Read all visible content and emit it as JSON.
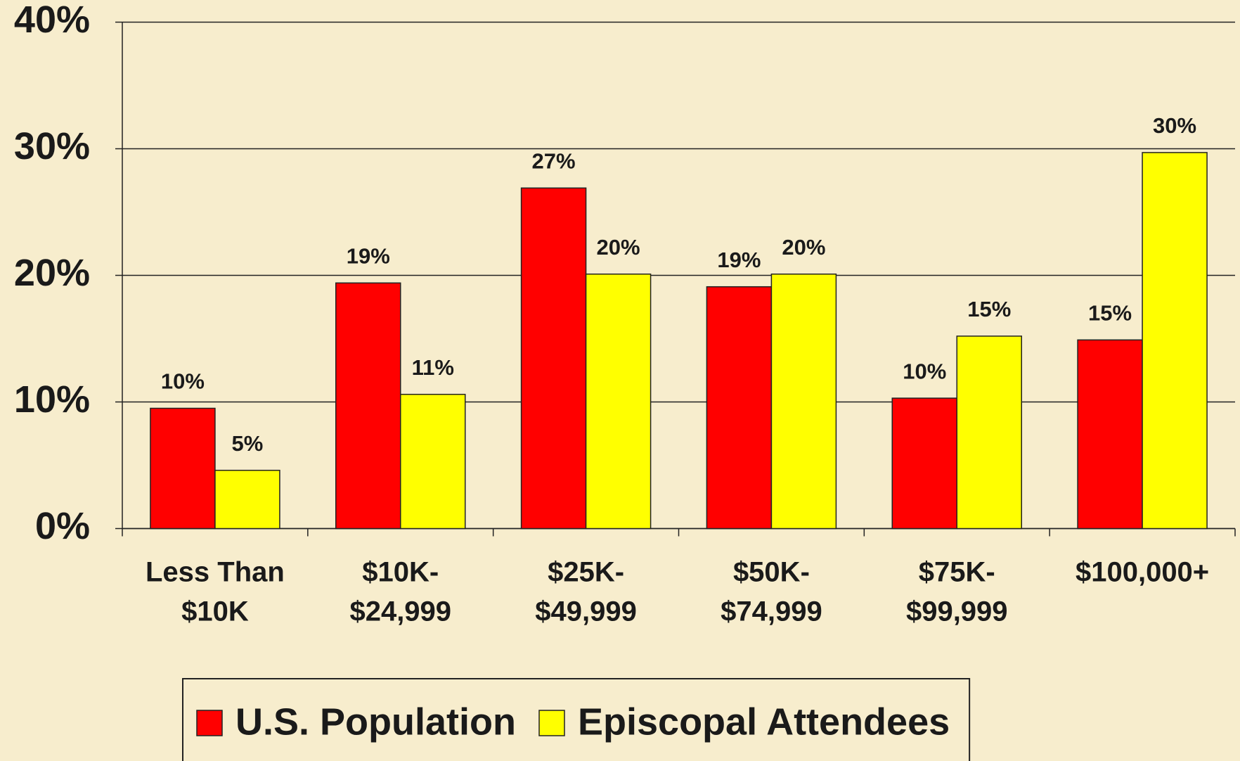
{
  "chart_data": {
    "type": "bar",
    "categories": [
      [
        "Less Than",
        "$10K"
      ],
      [
        "$10K-",
        "$24,999"
      ],
      [
        "$25K-",
        "$49,999"
      ],
      [
        "$50K-",
        "$74,999"
      ],
      [
        "$75K-",
        "$99,999"
      ],
      [
        "$100,000+"
      ]
    ],
    "series": [
      {
        "name": "U.S. Population",
        "color": "#ff0000",
        "values": [
          9.5,
          19.4,
          26.9,
          19.1,
          10.3,
          14.9
        ],
        "value_labels": [
          "10%",
          "19%",
          "27%",
          "19%",
          "10%",
          "15%"
        ]
      },
      {
        "name": "Episcopal Attendees",
        "color": "#ffff00",
        "values": [
          4.6,
          10.6,
          20.1,
          20.1,
          15.2,
          29.7
        ],
        "value_labels": [
          "5%",
          "11%",
          "20%",
          "20%",
          "15%",
          "30%"
        ]
      }
    ],
    "ylim": [
      0,
      40
    ],
    "yticks": [
      {
        "value": 0,
        "label": "0%"
      },
      {
        "value": 10,
        "label": "10%"
      },
      {
        "value": 20,
        "label": "20%"
      },
      {
        "value": 30,
        "label": "30%"
      },
      {
        "value": 40,
        "label": "40%"
      }
    ],
    "grid": true,
    "legend": "bottom"
  }
}
